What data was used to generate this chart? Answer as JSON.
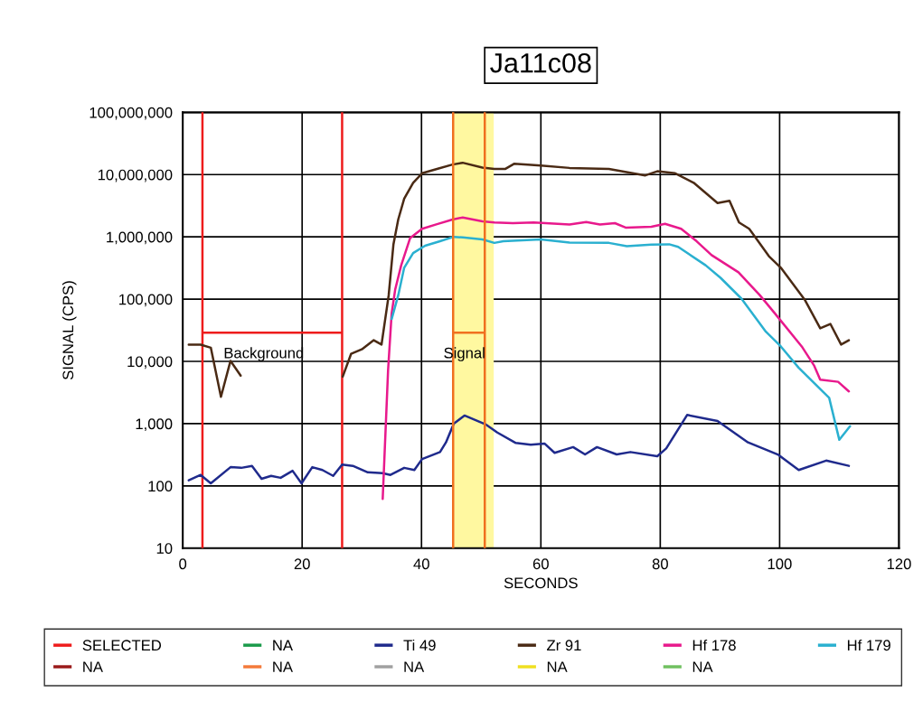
{
  "chart_data": {
    "type": "line",
    "title": "Ja11c08",
    "xlabel": "SECONDS",
    "ylabel": "SIGNAL (CPS)",
    "log": "y",
    "grid": true,
    "legend": "bottom",
    "line_style": "solid",
    "marker": "none",
    "xlim": [
      0,
      120
    ],
    "xticks": [
      0,
      20,
      40,
      60,
      80,
      100,
      120
    ],
    "ylim": [
      10,
      100000000
    ],
    "yticks": [
      {
        "value": 10,
        "label": "10"
      },
      {
        "value": 100,
        "label": "100"
      },
      {
        "value": 1000,
        "label": "1,000"
      },
      {
        "value": 10000,
        "label": "10,000"
      },
      {
        "value": 100000,
        "label": "100,000"
      },
      {
        "value": 1000000,
        "label": "1,000,000"
      },
      {
        "value": 10000000,
        "label": "10,000,000"
      },
      {
        "value": 100000000,
        "label": "100,000,000"
      }
    ],
    "bands": [
      {
        "axis": "x",
        "from": 45.3,
        "to": 52.1,
        "color": "#fff8a0"
      }
    ],
    "annotations": [
      "Background",
      "Signal"
    ],
    "series": [
      {
        "name": "SELECTED",
        "color": "#ee1c1c",
        "x": [
          3.3,
          3.3,
          3.3,
          26.7,
          26.7,
          26.7
        ],
        "values": [
          10,
          100000000,
          29000,
          29000,
          100000000,
          10
        ]
      },
      {
        "name": "NA",
        "color": "#1a9a4a"
      },
      {
        "name": "Ti 49",
        "color": "#1f2a8c",
        "x": [
          1,
          3,
          4.7,
          8,
          9.8,
          11.6,
          13.2,
          14.8,
          16.4,
          18.4,
          19.9,
          21.7,
          23.4,
          25.2,
          26.7,
          28.5,
          31,
          33.5,
          34.8,
          37.1,
          38.8,
          40.1,
          43.1,
          44.1,
          45.4,
          47.2,
          50.7,
          52.7,
          55.8,
          58.3,
          60.6,
          62.3,
          65.4,
          67.4,
          69.4,
          72.7,
          75,
          79.5,
          81,
          84.5,
          89.6,
          94.7,
          99.7,
          103.2,
          107.8,
          111.6
        ],
        "values": [
          123,
          150,
          110,
          200,
          195,
          210,
          130,
          145,
          135,
          175,
          110,
          200,
          180,
          145,
          220,
          210,
          165,
          160,
          150,
          195,
          180,
          270,
          350,
          500,
          1000,
          1350,
          980,
          720,
          490,
          460,
          480,
          340,
          420,
          320,
          420,
          320,
          350,
          300,
          400,
          1380,
          1100,
          500,
          320,
          180,
          255,
          210
        ]
      },
      {
        "name": "Zr 91",
        "color": "#4a2a14",
        "x": [
          1,
          3,
          4.7,
          6.4,
          8,
          9.7,
          18,
          26.8,
          28.2,
          30,
          32,
          33.3,
          34.5,
          35.3,
          36.1,
          37.1,
          38.6,
          40.1,
          42.6,
          45.2,
          46.9,
          50.2,
          52.2,
          54,
          55.5,
          57.8,
          60,
          64.8,
          71.4,
          77.5,
          79.5,
          82.5,
          85.6,
          89.6,
          91.6,
          93.2,
          94.9,
          98.2,
          100.2,
          104.2,
          106.8,
          108.5,
          110.3,
          111.6
        ],
        "values": [
          18600,
          18600,
          16600,
          2700,
          10200,
          5900,
          null,
          5700,
          13200,
          15600,
          21900,
          18600,
          115000,
          760000,
          1900000,
          4100000,
          7400000,
          10500000,
          12300000,
          14500000,
          15500000,
          13000000,
          12300000,
          12300000,
          14900000,
          14500000,
          14000000,
          12800000,
          12300000,
          9700000,
          11300000,
          10500000,
          7400000,
          3500000,
          3800000,
          1700000,
          1350000,
          490000,
          320000,
          98000,
          34000,
          40000,
          18600,
          21900
        ]
      },
      {
        "name": "Hf 178",
        "color": "#e8198c",
        "x": [
          33.5,
          34,
          34.4,
          35,
          35.6,
          36.6,
          38.1,
          40.1,
          42.6,
          45.2,
          46.9,
          50.2,
          52.2,
          55.3,
          58.8,
          64.8,
          67.6,
          69.9,
          72.4,
          74.2,
          78.5,
          80.8,
          83.5,
          86.1,
          88.6,
          93.1,
          96.7,
          99.2,
          103.7,
          105.8,
          106.8,
          109.8,
          111.6
        ],
        "values": [
          62,
          870,
          7200,
          59000,
          144000,
          350000,
          960000,
          1350000,
          1600000,
          1900000,
          2050000,
          1770000,
          1700000,
          1660000,
          1700000,
          1580000,
          1730000,
          1580000,
          1660000,
          1410000,
          1450000,
          1620000,
          1350000,
          850000,
          510000,
          270000,
          115000,
          59000,
          17400,
          8500,
          5100,
          4700,
          3300
        ]
      },
      {
        "name": "Hf 179",
        "color": "#2ab0d0",
        "x": [
          35,
          36.1,
          37.1,
          38.6,
          40.6,
          43.1,
          45.4,
          46.9,
          50.2,
          52.2,
          53.7,
          60,
          64.8,
          71.4,
          74.4,
          78.5,
          81.5,
          83,
          87.6,
          90.1,
          93.6,
          97.7,
          100.2,
          103.2,
          108.3,
          110,
          111.8
        ],
        "values": [
          48000,
          115000,
          320000,
          550000,
          720000,
          850000,
          1000000,
          980000,
          910000,
          800000,
          850000,
          910000,
          810000,
          800000,
          710000,
          750000,
          760000,
          690000,
          350000,
          220000,
          102000,
          30000,
          17400,
          7900,
          2600,
          550,
          910
        ]
      },
      {
        "color": "#f07020",
        "x": [
          45.3,
          45.3,
          45.3,
          50.6,
          50.6,
          50.6
        ],
        "values": [
          10,
          100000000,
          29000,
          29000,
          100000000,
          10
        ]
      },
      {
        "name": "NA",
        "color": "#9a1a1a"
      },
      {
        "name": "NA",
        "color": "#f47a3a"
      },
      {
        "name": "NA",
        "color": "#a0a0a0"
      },
      {
        "name": "NA",
        "color": "#f0e020"
      },
      {
        "name": "NA",
        "color": "#70c060"
      }
    ]
  }
}
